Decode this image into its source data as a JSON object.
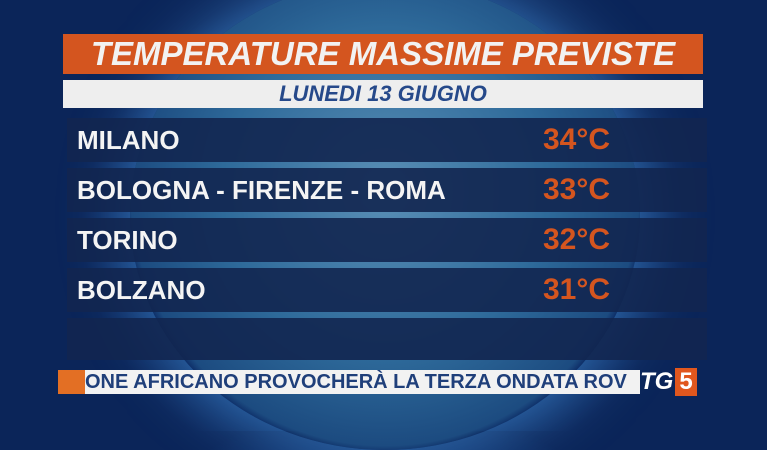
{
  "title": "TEMPERATURE MASSIME PREVISTE",
  "date": "LUNEDI 13 GIUGNO",
  "rows": [
    {
      "city": "MILANO",
      "temp": "34°C"
    },
    {
      "city": "BOLOGNA - FIRENZE - ROMA",
      "temp": "33°C"
    },
    {
      "city": "TORINO",
      "temp": "32°C"
    },
    {
      "city": "BOLZANO",
      "temp": "31°C"
    }
  ],
  "ticker": "ONE AFRICANO PROVOCHERÀ LA TERZA ONDATA ROV",
  "logo": {
    "tg": "TG",
    "num": "5"
  },
  "colors": {
    "accent": "#d4551f",
    "navy": "#122650",
    "date_text": "#26498a"
  }
}
